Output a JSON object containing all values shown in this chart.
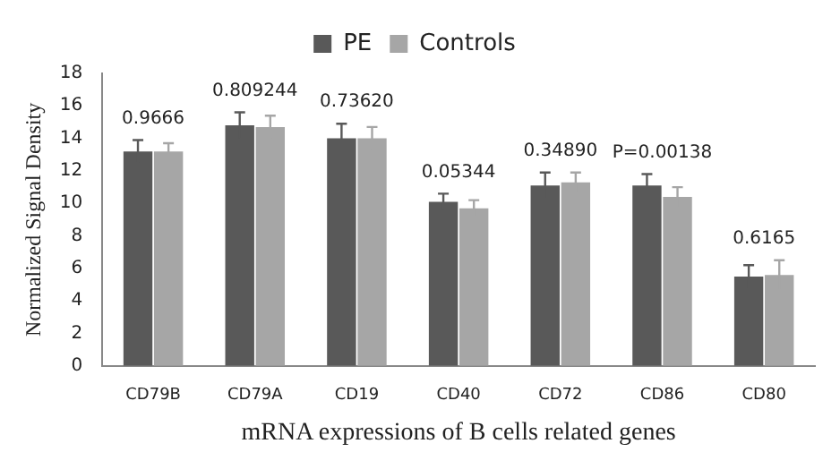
{
  "chart_data": {
    "type": "bar",
    "xlabel": "mRNA expressions of B cells related genes",
    "ylabel": "Normalized Signal Density",
    "categories": [
      "CD79B",
      "CD79A",
      "CD19",
      "CD40",
      "CD72",
      "CD86",
      "CD80"
    ],
    "series": [
      {
        "name": "PE",
        "color": "#595959",
        "values": [
          13.2,
          14.8,
          14.0,
          10.1,
          11.1,
          11.1,
          5.5
        ],
        "errors": [
          0.7,
          0.8,
          0.9,
          0.5,
          0.8,
          0.7,
          0.7
        ]
      },
      {
        "name": "Controls",
        "color": "#a6a6a6",
        "values": [
          13.2,
          14.7,
          14.0,
          9.7,
          11.3,
          10.4,
          5.6
        ],
        "errors": [
          0.5,
          0.7,
          0.7,
          0.5,
          0.6,
          0.6,
          0.9
        ]
      }
    ],
    "ylim": [
      0,
      18
    ],
    "yticks": [
      0,
      2,
      4,
      6,
      8,
      10,
      12,
      14,
      16,
      18
    ],
    "grid": false,
    "legend": "top",
    "annotations": [
      "0.9666",
      "0.809244",
      "0.73620",
      "0.05344",
      "0.34890",
      "P=0.00138",
      "0.6165"
    ]
  }
}
